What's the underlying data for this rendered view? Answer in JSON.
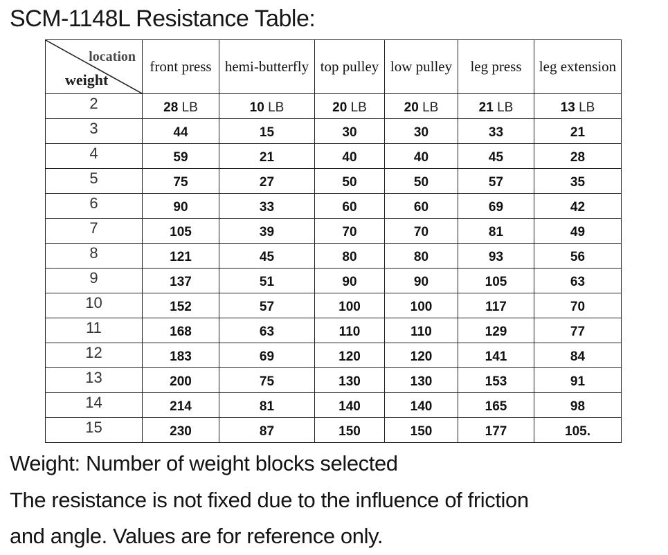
{
  "title": "SCM-1148L Resistance Table:",
  "table": {
    "corner": {
      "top_label": "location",
      "bottom_label": "weight"
    },
    "columns": [
      "front press",
      "hemi-butterfly",
      "top pulley",
      "low pulley",
      "leg press",
      "leg extension"
    ],
    "rows": [
      {
        "weight": "2",
        "unit": "LB",
        "values": [
          "28",
          "10",
          "20",
          "20",
          "21",
          "13"
        ]
      },
      {
        "weight": "3",
        "unit": "",
        "values": [
          "44",
          "15",
          "30",
          "30",
          "33",
          "21"
        ]
      },
      {
        "weight": "4",
        "unit": "",
        "values": [
          "59",
          "21",
          "40",
          "40",
          "45",
          "28"
        ]
      },
      {
        "weight": "5",
        "unit": "",
        "values": [
          "75",
          "27",
          "50",
          "50",
          "57",
          "35"
        ]
      },
      {
        "weight": "6",
        "unit": "",
        "values": [
          "90",
          "33",
          "60",
          "60",
          "69",
          "42"
        ]
      },
      {
        "weight": "7",
        "unit": "",
        "values": [
          "105",
          "39",
          "70",
          "70",
          "81",
          "49"
        ]
      },
      {
        "weight": "8",
        "unit": "",
        "values": [
          "121",
          "45",
          "80",
          "80",
          "93",
          "56"
        ]
      },
      {
        "weight": "9",
        "unit": "",
        "values": [
          "137",
          "51",
          "90",
          "90",
          "105",
          "63"
        ]
      },
      {
        "weight": "10",
        "unit": "",
        "values": [
          "152",
          "57",
          "100",
          "100",
          "117",
          "70"
        ]
      },
      {
        "weight": "11",
        "unit": "",
        "values": [
          "168",
          "63",
          "110",
          "110",
          "129",
          "77"
        ]
      },
      {
        "weight": "12",
        "unit": "",
        "values": [
          "183",
          "69",
          "120",
          "120",
          "141",
          "84"
        ]
      },
      {
        "weight": "13",
        "unit": "",
        "values": [
          "200",
          "75",
          "130",
          "130",
          "153",
          "91"
        ]
      },
      {
        "weight": "14",
        "unit": "",
        "values": [
          "214",
          "81",
          "140",
          "140",
          "165",
          "98"
        ]
      },
      {
        "weight": "15",
        "unit": "",
        "values": [
          "230",
          "87",
          "150",
          "150",
          "177",
          "105."
        ]
      }
    ]
  },
  "footer": {
    "lines": [
      "Weight: Number of weight blocks selected",
      "The resistance is not fixed due to the influence of friction",
      "and angle. Values are for reference only."
    ]
  },
  "colors": {
    "text": "#1a1a1a",
    "muted_label": "#4a4a4a",
    "border": "#222222",
    "background": "#ffffff"
  }
}
